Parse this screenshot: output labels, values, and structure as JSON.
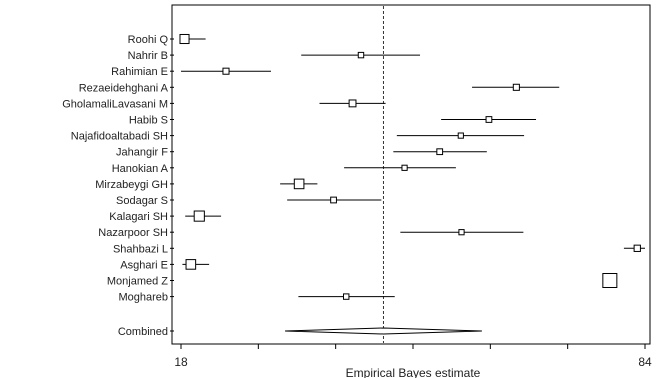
{
  "chart_data": {
    "type": "forest",
    "title": "",
    "xlabel": "Empirical Bayes estimate",
    "ylabel": "",
    "xlim": [
      18,
      84
    ],
    "x_tick_labels": [
      "18",
      "84"
    ],
    "reference_line": 46.8,
    "reference_line_style": "dashed",
    "rows": [
      {
        "name": "Roohi Q",
        "estimate": 18.5,
        "lower": 18.0,
        "upper": 21.5,
        "weight": 0.55
      },
      {
        "name": "Nahrir B",
        "estimate": 43.6,
        "lower": 35.1,
        "upper": 52.0,
        "weight": 0.22
      },
      {
        "name": "Rahimian E",
        "estimate": 24.4,
        "lower": 18.0,
        "upper": 30.8,
        "weight": 0.28
      },
      {
        "name": "Rezaeidehghani A",
        "estimate": 65.7,
        "lower": 59.4,
        "upper": 71.8,
        "weight": 0.28
      },
      {
        "name": "GholamaliLavasani M",
        "estimate": 42.4,
        "lower": 37.7,
        "upper": 47.1,
        "weight": 0.35
      },
      {
        "name": "Habib S",
        "estimate": 61.8,
        "lower": 55.0,
        "upper": 68.5,
        "weight": 0.25
      },
      {
        "name": "Najafidoaltabadi SH",
        "estimate": 57.8,
        "lower": 48.7,
        "upper": 66.8,
        "weight": 0.2
      },
      {
        "name": "Jahangir F",
        "estimate": 54.8,
        "lower": 48.2,
        "upper": 61.5,
        "weight": 0.25
      },
      {
        "name": "Hanokian A",
        "estimate": 49.8,
        "lower": 41.2,
        "upper": 57.1,
        "weight": 0.2
      },
      {
        "name": "Mirzabeygi GH",
        "estimate": 34.8,
        "lower": 32.1,
        "upper": 37.4,
        "weight": 0.6
      },
      {
        "name": "Sodagar S",
        "estimate": 39.7,
        "lower": 33.1,
        "upper": 46.5,
        "weight": 0.25
      },
      {
        "name": "Kalagari SH",
        "estimate": 20.6,
        "lower": 18.6,
        "upper": 23.7,
        "weight": 0.65
      },
      {
        "name": "Nazarpoor SH",
        "estimate": 57.9,
        "lower": 49.2,
        "upper": 66.7,
        "weight": 0.2
      },
      {
        "name": "Shahbazi L",
        "estimate": 82.9,
        "lower": 81.0,
        "upper": 84.0,
        "weight": 0.3
      },
      {
        "name": "Asghari E",
        "estimate": 19.4,
        "lower": 18.2,
        "upper": 22.0,
        "weight": 0.6
      },
      {
        "name": "Monjamed Z",
        "estimate": 79.0,
        "lower": 78.3,
        "upper": 79.7,
        "weight": 1.0
      },
      {
        "name": "Moghareb",
        "estimate": 41.5,
        "lower": 34.7,
        "upper": 48.4,
        "weight": 0.22
      }
    ],
    "combined": {
      "name": "Combined",
      "estimate": 46.8,
      "lower": 32.8,
      "upper": 60.8
    }
  }
}
